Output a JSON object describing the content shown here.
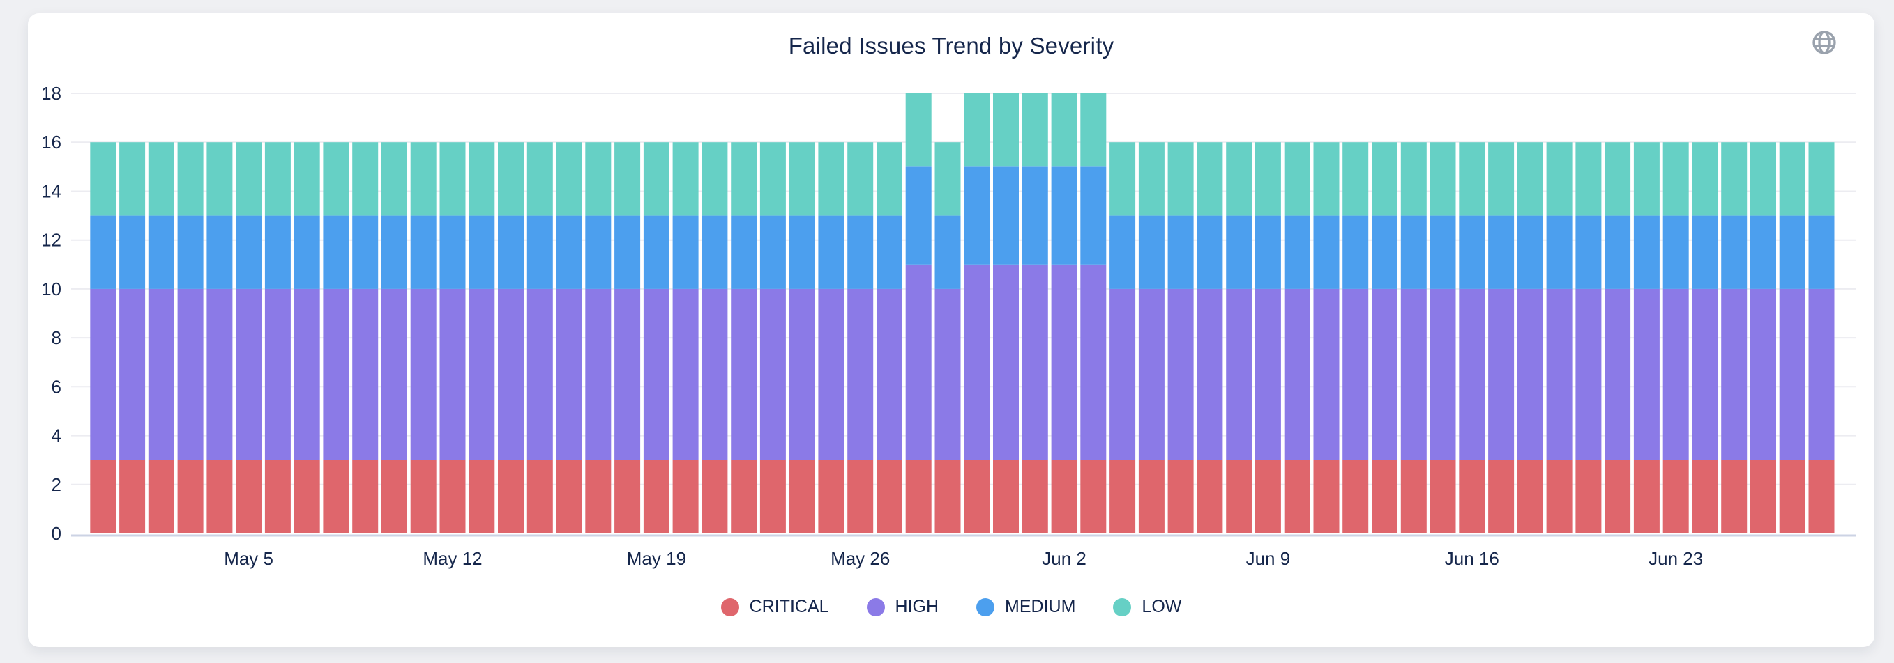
{
  "header": {
    "icon": "globe"
  },
  "chart_data": {
    "type": "bar",
    "stacked": true,
    "title": "Failed Issues Trend by Severity",
    "xlabel": "",
    "ylabel": "",
    "ylim": [
      0,
      18
    ],
    "y_ticks": [
      0,
      2,
      4,
      6,
      8,
      10,
      12,
      14,
      16,
      18
    ],
    "grid": "horizontal",
    "legend_position": "bottom",
    "x": [
      "Apr 30",
      "May 1",
      "May 2",
      "May 3",
      "May 4",
      "May 5",
      "May 6",
      "May 7",
      "May 8",
      "May 9",
      "May 10",
      "May 11",
      "May 12",
      "May 13",
      "May 14",
      "May 15",
      "May 16",
      "May 17",
      "May 18",
      "May 19",
      "May 20",
      "May 21",
      "May 22",
      "May 23",
      "May 24",
      "May 25",
      "May 26",
      "May 27",
      "May 28",
      "May 29",
      "May 30",
      "May 31",
      "Jun 1",
      "Jun 2",
      "Jun 3",
      "Jun 4",
      "Jun 5",
      "Jun 6",
      "Jun 7",
      "Jun 8",
      "Jun 9",
      "Jun 10",
      "Jun 11",
      "Jun 12",
      "Jun 13",
      "Jun 14",
      "Jun 15",
      "Jun 16",
      "Jun 17",
      "Jun 18",
      "Jun 19",
      "Jun 20",
      "Jun 21",
      "Jun 22",
      "Jun 23",
      "Jun 24",
      "Jun 25",
      "Jun 26",
      "Jun 27",
      "Jun 28"
    ],
    "tick_indices": [
      5,
      12,
      19,
      26,
      33,
      40,
      47,
      54
    ],
    "tick_labels": [
      "May 5",
      "May 12",
      "May 19",
      "May 26",
      "Jun 2",
      "Jun 9",
      "Jun 16",
      "Jun 23"
    ],
    "series": [
      {
        "name": "CRITICAL",
        "color": "#df666c",
        "values": [
          3,
          3,
          3,
          3,
          3,
          3,
          3,
          3,
          3,
          3,
          3,
          3,
          3,
          3,
          3,
          3,
          3,
          3,
          3,
          3,
          3,
          3,
          3,
          3,
          3,
          3,
          3,
          3,
          3,
          3,
          3,
          3,
          3,
          3,
          3,
          3,
          3,
          3,
          3,
          3,
          3,
          3,
          3,
          3,
          3,
          3,
          3,
          3,
          3,
          3,
          3,
          3,
          3,
          3,
          3,
          3,
          3,
          3,
          3,
          3
        ]
      },
      {
        "name": "HIGH",
        "color": "#8b7ae7",
        "values": [
          7,
          7,
          7,
          7,
          7,
          7,
          7,
          7,
          7,
          7,
          7,
          7,
          7,
          7,
          7,
          7,
          7,
          7,
          7,
          7,
          7,
          7,
          7,
          7,
          7,
          7,
          7,
          7,
          8,
          7,
          8,
          8,
          8,
          8,
          8,
          7,
          7,
          7,
          7,
          7,
          7,
          7,
          7,
          7,
          7,
          7,
          7,
          7,
          7,
          7,
          7,
          7,
          7,
          7,
          7,
          7,
          7,
          7,
          7,
          7
        ]
      },
      {
        "name": "MEDIUM",
        "color": "#4c9fee",
        "values": [
          3,
          3,
          3,
          3,
          3,
          3,
          3,
          3,
          3,
          3,
          3,
          3,
          3,
          3,
          3,
          3,
          3,
          3,
          3,
          3,
          3,
          3,
          3,
          3,
          3,
          3,
          3,
          3,
          4,
          3,
          4,
          4,
          4,
          4,
          4,
          3,
          3,
          3,
          3,
          3,
          3,
          3,
          3,
          3,
          3,
          3,
          3,
          3,
          3,
          3,
          3,
          3,
          3,
          3,
          3,
          3,
          3,
          3,
          3,
          3
        ]
      },
      {
        "name": "LOW",
        "color": "#66d0c5",
        "values": [
          3,
          3,
          3,
          3,
          3,
          3,
          3,
          3,
          3,
          3,
          3,
          3,
          3,
          3,
          3,
          3,
          3,
          3,
          3,
          3,
          3,
          3,
          3,
          3,
          3,
          3,
          3,
          3,
          3,
          3,
          3,
          3,
          3,
          3,
          3,
          3,
          3,
          3,
          3,
          3,
          3,
          3,
          3,
          3,
          3,
          3,
          3,
          3,
          3,
          3,
          3,
          3,
          3,
          3,
          3,
          3,
          3,
          3,
          3,
          3
        ]
      }
    ],
    "theme": {
      "text_color": "#15264b",
      "grid_color": "#ececf1",
      "axis_line_color": "#ccd3e4",
      "card_background": "#ffffff",
      "page_background": "#eff0f3",
      "icon_color": "#9aa2ad"
    }
  }
}
